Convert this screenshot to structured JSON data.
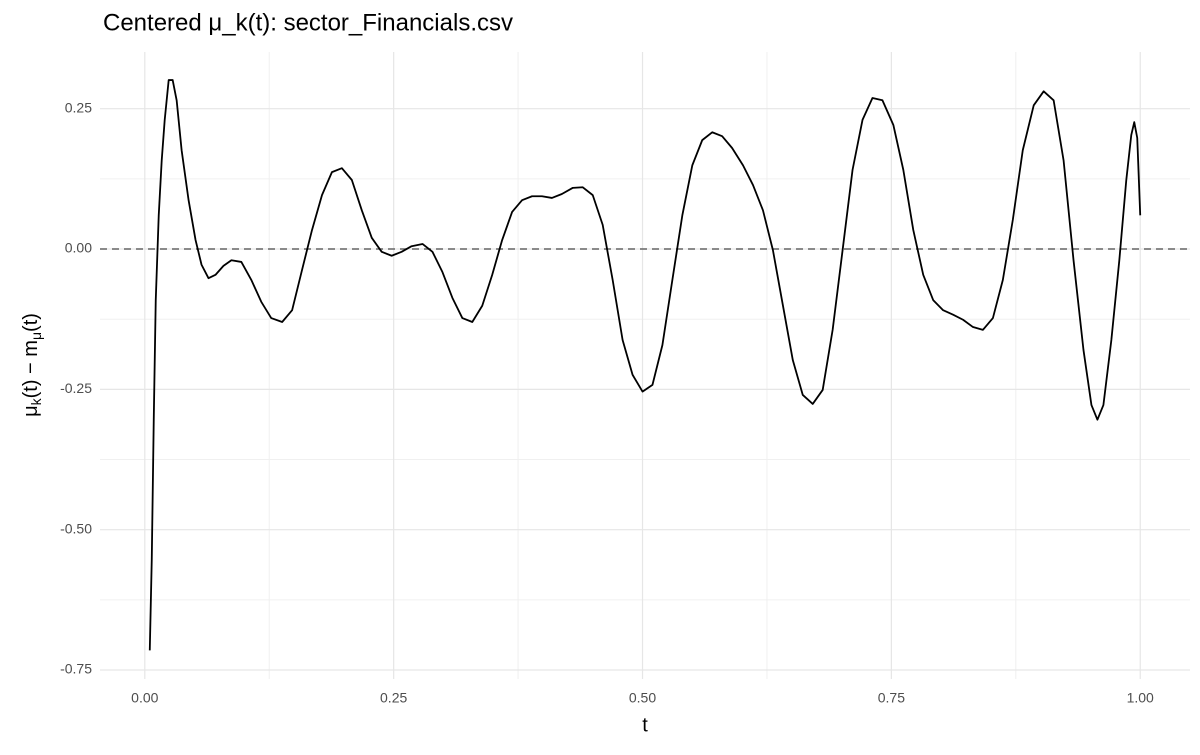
{
  "chart_data": {
    "type": "line",
    "title": "Centered μ_k(t): sector_Financials.csv",
    "xlabel": "t",
    "ylabel": [
      "μ",
      "k",
      "(t) − m",
      "μ",
      "(t)"
    ],
    "x": [
      0.005,
      0.007,
      0.009,
      0.011,
      0.014,
      0.017,
      0.02,
      0.024,
      0.028,
      0.032,
      0.037,
      0.044,
      0.051,
      0.057,
      0.064,
      0.071,
      0.079,
      0.087,
      0.097,
      0.107,
      0.117,
      0.127,
      0.138,
      0.148,
      0.158,
      0.168,
      0.178,
      0.188,
      0.198,
      0.208,
      0.218,
      0.228,
      0.238,
      0.248,
      0.258,
      0.268,
      0.279,
      0.289,
      0.299,
      0.309,
      0.319,
      0.329,
      0.339,
      0.349,
      0.359,
      0.369,
      0.379,
      0.389,
      0.399,
      0.409,
      0.419,
      0.43,
      0.44,
      0.45,
      0.46,
      0.47,
      0.48,
      0.49,
      0.5,
      0.51,
      0.52,
      0.53,
      0.54,
      0.55,
      0.56,
      0.57,
      0.58,
      0.59,
      0.601,
      0.611,
      0.621,
      0.631,
      0.641,
      0.651,
      0.661,
      0.671,
      0.681,
      0.691,
      0.701,
      0.711,
      0.721,
      0.731,
      0.741,
      0.752,
      0.762,
      0.772,
      0.782,
      0.792,
      0.802,
      0.812,
      0.822,
      0.832,
      0.842,
      0.852,
      0.862,
      0.872,
      0.882,
      0.893,
      0.903,
      0.913,
      0.923,
      0.933,
      0.943,
      0.951,
      0.957,
      0.963,
      0.971,
      0.979,
      0.986,
      0.991,
      0.994,
      0.997,
      1.0
    ],
    "series": [
      {
        "color": "#000000",
        "values": [
          -0.715,
          -0.553,
          -0.304,
          -0.091,
          0.06,
          0.158,
          0.23,
          0.301,
          0.301,
          0.265,
          0.176,
          0.087,
          0.016,
          -0.028,
          -0.052,
          -0.046,
          -0.03,
          -0.02,
          -0.023,
          -0.055,
          -0.094,
          -0.123,
          -0.13,
          -0.109,
          -0.037,
          0.034,
          0.096,
          0.137,
          0.144,
          0.123,
          0.069,
          0.02,
          -0.005,
          -0.012,
          -0.005,
          0.005,
          0.009,
          -0.005,
          -0.041,
          -0.087,
          -0.123,
          -0.13,
          -0.101,
          -0.046,
          0.016,
          0.066,
          0.087,
          0.094,
          0.094,
          0.091,
          0.098,
          0.109,
          0.11,
          0.096,
          0.043,
          -0.055,
          -0.162,
          -0.224,
          -0.254,
          -0.242,
          -0.171,
          -0.055,
          0.06,
          0.149,
          0.194,
          0.208,
          0.201,
          0.18,
          0.149,
          0.114,
          0.069,
          -0.002,
          -0.1,
          -0.198,
          -0.26,
          -0.276,
          -0.251,
          -0.144,
          -0.002,
          0.141,
          0.23,
          0.269,
          0.265,
          0.221,
          0.141,
          0.034,
          -0.046,
          -0.091,
          -0.109,
          -0.117,
          -0.126,
          -0.139,
          -0.144,
          -0.123,
          -0.055,
          0.052,
          0.176,
          0.256,
          0.281,
          0.265,
          0.158,
          -0.02,
          -0.18,
          -0.278,
          -0.304,
          -0.278,
          -0.162,
          -0.02,
          0.123,
          0.203,
          0.226,
          0.198,
          0.06
        ]
      }
    ],
    "xlim": [
      -0.045,
      1.05
    ],
    "ylim": [
      -0.766,
      0.351
    ],
    "xticks": [
      {
        "value": 0,
        "label": "0.00"
      },
      0.25,
      {
        "value": 0.5,
        "label": "0.50"
      },
      0.75,
      {
        "value": 1,
        "label": "1.00"
      }
    ],
    "yticks": [
      {
        "value": -0.75,
        "label": "-0.75"
      },
      {
        "value": -0.5,
        "label": "-0.50"
      },
      -0.25,
      {
        "value": 0,
        "label": "0.00"
      },
      0.25
    ],
    "x_minor_grid": [
      0.125,
      0.375,
      0.625,
      0.875
    ],
    "y_minor_grid": [
      -0.625,
      -0.375,
      -0.125,
      0.125
    ],
    "hline": {
      "value": 0,
      "color": "#666666",
      "dashed": true
    },
    "grid": true
  }
}
